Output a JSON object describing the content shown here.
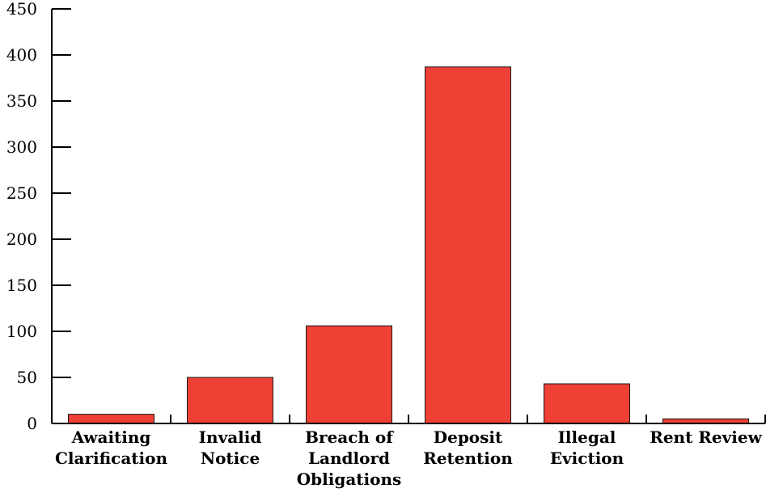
{
  "chart_data": {
    "type": "bar",
    "title": "",
    "xlabel": "",
    "ylabel": "",
    "categories": [
      [
        "Awaiting",
        "Clarification"
      ],
      [
        "Invalid",
        "Notice"
      ],
      [
        "Breach of",
        "Landlord",
        "Obligations"
      ],
      [
        "Deposit",
        "Retention"
      ],
      [
        "Illegal",
        "Eviction"
      ],
      [
        "Rent Review"
      ]
    ],
    "values": [
      10,
      50,
      106,
      387,
      43,
      5
    ],
    "ylim": [
      0,
      450
    ],
    "yticks": [
      "0",
      "50",
      "100",
      "150",
      "200",
      "250",
      "300",
      "350",
      "400",
      "450"
    ],
    "bar_color": "#ee4035",
    "grid": false,
    "legend": "none"
  }
}
